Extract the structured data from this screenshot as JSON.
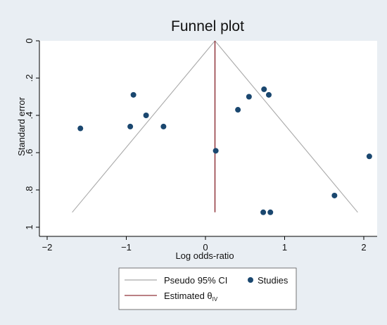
{
  "chart_data": {
    "type": "scatter",
    "title": "Funnel plot",
    "xlabel": "Log odds-ratio",
    "ylabel": "Standard error",
    "xlim": [
      -2,
      2.1
    ],
    "ylim": [
      0,
      1
    ],
    "y_reversed": true,
    "grid": false,
    "x_ticks": [
      {
        "value": -2,
        "label": "−2"
      },
      {
        "value": -1,
        "label": "−1"
      },
      {
        "value": 0,
        "label": "0"
      },
      {
        "value": 1,
        "label": "1"
      },
      {
        "value": 2,
        "label": "2"
      }
    ],
    "y_ticks": [
      {
        "value": 0,
        "label": "0"
      },
      {
        "value": 0.2,
        "label": ".2"
      },
      {
        "value": 0.4,
        "label": ".4"
      },
      {
        "value": 0.6,
        "label": ".6"
      },
      {
        "value": 0.8,
        "label": ".8"
      },
      {
        "value": 1,
        "label": "1"
      }
    ],
    "estimate": 0.12,
    "ci_max_se": 0.92,
    "ci_multiplier": 1.96,
    "studies": [
      {
        "x": -1.58,
        "y": 0.47
      },
      {
        "x": -0.91,
        "y": 0.29
      },
      {
        "x": -0.95,
        "y": 0.46
      },
      {
        "x": -0.75,
        "y": 0.4
      },
      {
        "x": -0.53,
        "y": 0.46
      },
      {
        "x": 0.13,
        "y": 0.59
      },
      {
        "x": 0.41,
        "y": 0.37
      },
      {
        "x": 0.55,
        "y": 0.3
      },
      {
        "x": 0.74,
        "y": 0.26
      },
      {
        "x": 0.8,
        "y": 0.29
      },
      {
        "x": 0.73,
        "y": 0.92
      },
      {
        "x": 0.82,
        "y": 0.92
      },
      {
        "x": 1.63,
        "y": 0.83
      },
      {
        "x": 2.07,
        "y": 0.62
      }
    ],
    "legend": {
      "position": "bottom",
      "entries": [
        {
          "label": "Pseudo 95% CI",
          "kind": "line",
          "color": "#a9a9a9"
        },
        {
          "label": "Studies",
          "kind": "marker",
          "color": "#1a476f"
        },
        {
          "label": "Estimated θ",
          "subscript": "IV",
          "kind": "line",
          "color": "#90353b"
        }
      ]
    },
    "colors": {
      "background": "#e9eef3",
      "plot_area": "#ffffff",
      "marker": "#1a476f",
      "ci_line": "#a9a9a9",
      "estimate_line": "#90353b"
    }
  }
}
